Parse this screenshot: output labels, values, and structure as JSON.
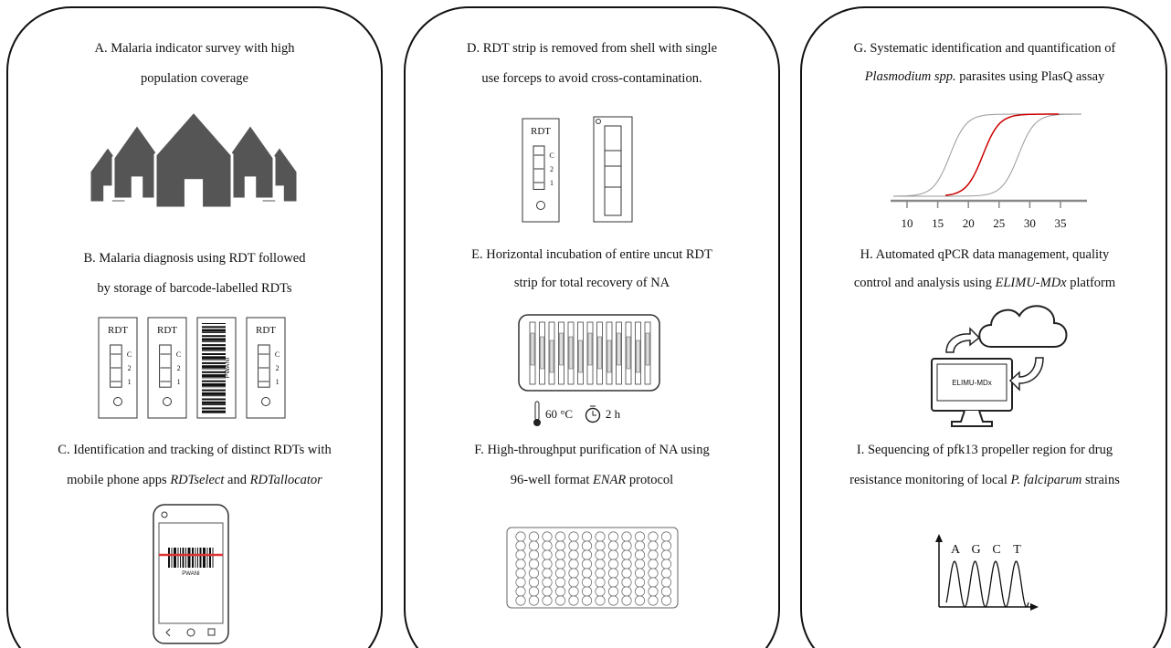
{
  "panels": [
    {
      "steps": [
        {
          "lines": [
            [
              "A. Malaria indicator survey with high"
            ],
            [
              "population coverage"
            ]
          ]
        },
        {
          "lines": [
            [
              "B. Malaria diagnosis using RDT followed"
            ],
            [
              "by storage of barcode-labelled RDTs"
            ]
          ]
        },
        {
          "lines": [
            [
              "C. Identification and tracking of distinct RDTs with"
            ],
            [
              "mobile phone apps ",
              "RDTselect",
              " and ",
              "RDTallocator"
            ]
          ]
        }
      ]
    },
    {
      "steps": [
        {
          "lines": [
            [
              "D. RDT strip is removed from shell with single"
            ],
            [
              "use forceps to avoid cross-contamination."
            ]
          ]
        },
        {
          "lines": [
            [
              "E. Horizontal incubation of entire uncut RDT"
            ],
            [
              "strip for total recovery of NA"
            ]
          ]
        },
        {
          "lines": [
            [
              "F. High-throughput purification of NA using"
            ],
            [
              "96-well format ",
              "ENAR",
              " protocol"
            ]
          ]
        }
      ]
    },
    {
      "steps": [
        {
          "lines": [
            [
              "G. Systematic identification and quantification of"
            ],
            [
              "Plasmodium spp.",
              " parasites using PlasQ assay"
            ]
          ]
        },
        {
          "lines": [
            [
              "H. Automated qPCR data management, quality"
            ],
            [
              "control and analysis using ",
              "ELIMU-MDx",
              " platform"
            ]
          ]
        },
        {
          "lines": [
            [
              "I. Sequencing of pfk13 propeller region for drug"
            ],
            [
              "resistance monitoring of local ",
              "P. falciparum",
              " strains"
            ]
          ]
        }
      ]
    }
  ],
  "icons": {
    "rdt_label": "RDT",
    "rdt_marks": [
      "C",
      "2",
      "1"
    ],
    "barcode_text": "PWANI",
    "temperature": "60 °C",
    "time": "2 h",
    "qpcr_ticks": [
      "10",
      "15",
      "20",
      "25",
      "30",
      "35"
    ],
    "platform": "ELIMU-MDx",
    "bases": [
      "A",
      "G",
      "C",
      "T"
    ]
  }
}
